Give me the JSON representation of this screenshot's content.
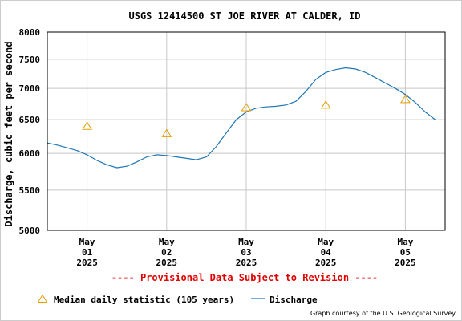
{
  "chart_data": {
    "type": "line",
    "title": "USGS 12414500 ST JOE RIVER AT CALDER, ID",
    "ylabel": "Discharge, cubic feet per second",
    "xlabel": "",
    "y_scale": "log",
    "ylim": [
      5000,
      8000
    ],
    "y_ticks": [
      {
        "value": 5000,
        "label": "5000"
      },
      {
        "value": 5500,
        "label": "5500"
      },
      {
        "value": 6000,
        "label": "6000"
      },
      {
        "value": 6500,
        "label": "6500"
      },
      {
        "value": 7000,
        "label": "7000"
      },
      {
        "value": 7500,
        "label": "7500"
      },
      {
        "value": 8000,
        "label": "8000"
      }
    ],
    "x_range": [
      "2025-04-30T12:00",
      "2025-05-05T12:00"
    ],
    "x_ticks": [
      {
        "date": "2025-05-01",
        "lines": [
          "May",
          "01",
          "2025"
        ]
      },
      {
        "date": "2025-05-02",
        "lines": [
          "May",
          "02",
          "2025"
        ]
      },
      {
        "date": "2025-05-03",
        "lines": [
          "May",
          "03",
          "2025"
        ]
      },
      {
        "date": "2025-05-04",
        "lines": [
          "May",
          "04",
          "2025"
        ]
      },
      {
        "date": "2025-05-05",
        "lines": [
          "May",
          "05",
          "2025"
        ]
      }
    ],
    "grid": true,
    "series": [
      {
        "name": "Discharge",
        "color": "#1f77b4",
        "x": [
          "2025-04-30T12:00",
          "2025-04-30T15:00",
          "2025-04-30T18:00",
          "2025-04-30T21:00",
          "2025-05-01T00:00",
          "2025-05-01T03:00",
          "2025-05-01T06:00",
          "2025-05-01T09:00",
          "2025-05-01T12:00",
          "2025-05-01T15:00",
          "2025-05-01T18:00",
          "2025-05-01T21:00",
          "2025-05-02T00:00",
          "2025-05-02T03:00",
          "2025-05-02T06:00",
          "2025-05-02T09:00",
          "2025-05-02T12:00",
          "2025-05-02T15:00",
          "2025-05-02T18:00",
          "2025-05-02T21:00",
          "2025-05-03T00:00",
          "2025-05-03T03:00",
          "2025-05-03T06:00",
          "2025-05-03T09:00",
          "2025-05-03T12:00",
          "2025-05-03T15:00",
          "2025-05-03T18:00",
          "2025-05-03T21:00",
          "2025-05-04T00:00",
          "2025-05-04T03:00",
          "2025-05-04T06:00",
          "2025-05-04T09:00",
          "2025-05-04T12:00",
          "2025-05-04T15:00",
          "2025-05-04T18:00",
          "2025-05-04T21:00",
          "2025-05-05T00:00",
          "2025-05-05T03:00",
          "2025-05-05T06:00",
          "2025-05-05T09:00"
        ],
        "values": [
          6150,
          6120,
          6080,
          6040,
          5980,
          5900,
          5840,
          5800,
          5820,
          5880,
          5950,
          5980,
          5970,
          5950,
          5930,
          5910,
          5950,
          6100,
          6300,
          6500,
          6620,
          6680,
          6700,
          6710,
          6730,
          6790,
          6950,
          7150,
          7270,
          7320,
          7350,
          7330,
          7270,
          7180,
          7090,
          7000,
          6900,
          6770,
          6620,
          6500
        ]
      },
      {
        "name": "Median daily statistic (105 years)",
        "color": "#e69f00",
        "marker": "triangle",
        "x": [
          "2025-05-01T00:00",
          "2025-05-02T00:00",
          "2025-05-03T00:00",
          "2025-05-04T00:00",
          "2025-05-05T00:00"
        ],
        "values": [
          6400,
          6290,
          6690,
          6730,
          6820
        ]
      }
    ],
    "legend": {
      "placement": "bottom",
      "items": [
        {
          "label": "Median daily statistic (105 years)",
          "symbol": "triangle",
          "color": "#e69f00"
        },
        {
          "label": "Discharge",
          "symbol": "line",
          "color": "#1f77b4"
        }
      ]
    },
    "annotations": {
      "provisional": "---- Provisional Data Subject to Revision ----",
      "provisional_color": "#e00000",
      "credit": "Graph courtesy of the U.S. Geological Survey"
    }
  }
}
